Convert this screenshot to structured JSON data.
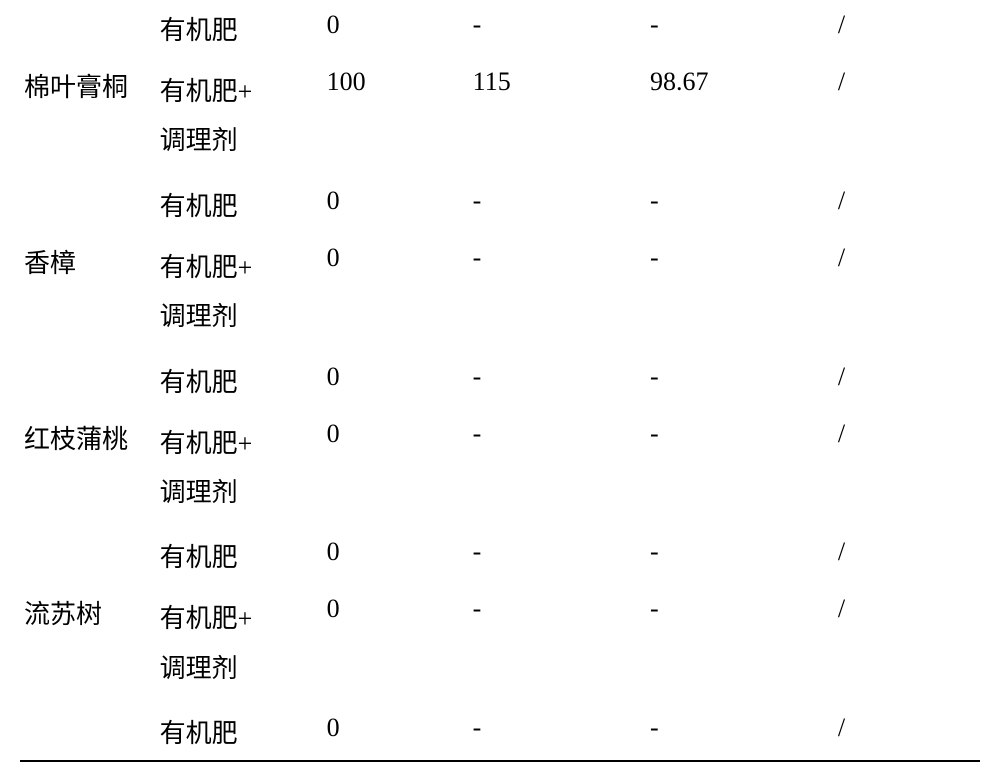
{
  "table": {
    "background_color": "#ffffff",
    "text_color": "#000000",
    "font_family": "SimSun",
    "font_size": 26,
    "border_color": "#000000",
    "border_width": 2,
    "rows": [
      {
        "species": "",
        "treatment": "有机肥",
        "val1": "0",
        "val2": "-",
        "val3": "-",
        "val4": "/"
      },
      {
        "species": "棉叶膏桐",
        "treatment_line1": "有机肥+",
        "treatment_line2": "调理剂",
        "val1": "100",
        "val2": "115",
        "val3": "98.67",
        "val4": "/"
      },
      {
        "species": "",
        "treatment": "有机肥",
        "val1": "0",
        "val2": "-",
        "val3": "-",
        "val4": "/"
      },
      {
        "species": "香樟",
        "treatment_line1": "有机肥+",
        "treatment_line2": "调理剂",
        "val1": "0",
        "val2": "-",
        "val3": "-",
        "val4": "/"
      },
      {
        "species": "",
        "treatment": "有机肥",
        "val1": "0",
        "val2": "-",
        "val3": "-",
        "val4": "/"
      },
      {
        "species": "红枝蒲桃",
        "treatment_line1": "有机肥+",
        "treatment_line2": "调理剂",
        "val1": "0",
        "val2": "-",
        "val3": "-",
        "val4": "/"
      },
      {
        "species": "",
        "treatment": "有机肥",
        "val1": "0",
        "val2": "-",
        "val3": "-",
        "val4": "/"
      },
      {
        "species": "流苏树",
        "treatment_line1": "有机肥+",
        "treatment_line2": "调理剂",
        "val1": "0",
        "val2": "-",
        "val3": "-",
        "val4": "/"
      },
      {
        "species": "",
        "treatment": "有机肥",
        "val1": "0",
        "val2": "-",
        "val3": "-",
        "val4": "/"
      }
    ]
  }
}
